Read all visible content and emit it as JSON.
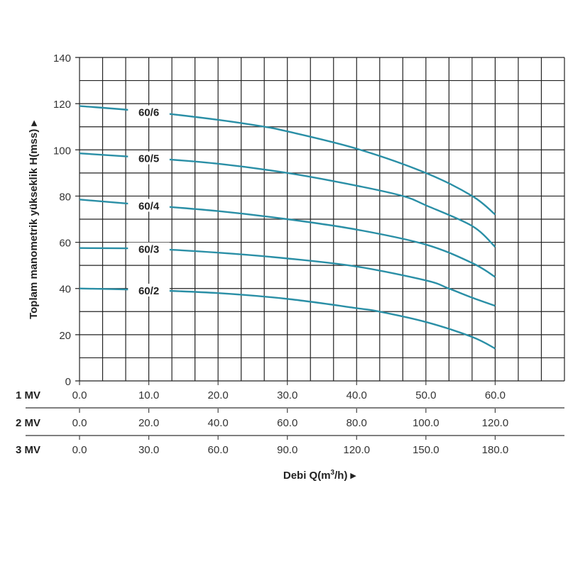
{
  "chart_data": {
    "type": "line",
    "ylabel": "Toplam manometrik yükseklik H(mss) ▸",
    "xlabel_prefix": "Debi Q(m",
    "xlabel_sup": "3",
    "xlabel_suffix": "/h) ▸",
    "ylim": [
      0,
      140
    ],
    "yticks": [
      "0",
      "20",
      "40",
      "60",
      "80",
      "100",
      "120",
      "140"
    ],
    "xlim": [
      0,
      70
    ],
    "grid": true,
    "x_scales": [
      {
        "label": "1 MV",
        "ticks": [
          "0.0",
          "10.0",
          "20.0",
          "30.0",
          "40.0",
          "50.0",
          "60.0"
        ]
      },
      {
        "label": "2 MV",
        "ticks": [
          "0.0",
          "20.0",
          "40.0",
          "60.0",
          "80.0",
          "100.0",
          "120.0"
        ]
      },
      {
        "label": "3 MV",
        "ticks": [
          "0.0",
          "30.0",
          "60.0",
          "90.0",
          "120.0",
          "150.0",
          "180.0"
        ]
      }
    ],
    "line_color": "#2a8fa6",
    "series": [
      {
        "name": "60/6",
        "x": [
          0,
          10,
          20,
          26.7,
          30,
          40,
          50,
          56.7,
          60
        ],
        "y": [
          119,
          116.5,
          113,
          110,
          108,
          100.5,
          90,
          80,
          72
        ]
      },
      {
        "name": "60/5",
        "x": [
          0,
          10,
          20,
          30,
          40,
          46.7,
          50,
          56.7,
          60
        ],
        "y": [
          98.5,
          96.5,
          94,
          90,
          84.5,
          80,
          76,
          67,
          58
        ]
      },
      {
        "name": "60/4",
        "x": [
          0,
          10,
          20,
          30,
          40,
          50,
          56.7,
          60
        ],
        "y": [
          78.5,
          76,
          73.5,
          70,
          65.5,
          59,
          51,
          45
        ]
      },
      {
        "name": "60/3",
        "x": [
          0,
          10,
          20,
          30,
          40,
          50,
          53.3,
          56.7,
          60
        ],
        "y": [
          57.5,
          57.2,
          55.5,
          53,
          49.5,
          43.5,
          40,
          36,
          32.5
        ]
      },
      {
        "name": "60/2",
        "x": [
          0,
          10,
          20,
          30,
          40,
          43.3,
          50,
          56.7,
          60
        ],
        "y": [
          40,
          39.3,
          38,
          35.5,
          31.5,
          30,
          25.5,
          19,
          14
        ]
      }
    ]
  }
}
